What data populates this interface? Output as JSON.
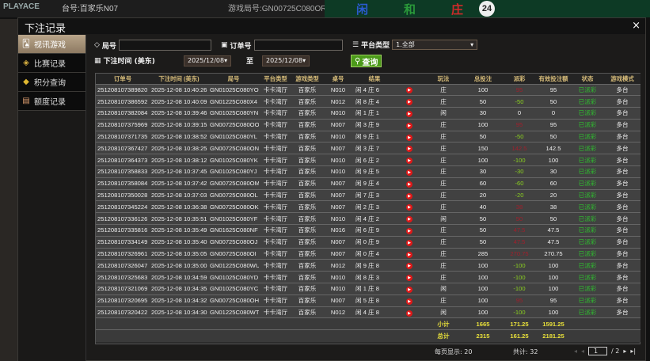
{
  "background": {
    "logo": "PLAYACE",
    "table_label": "台号:百家乐N07",
    "game_round": "游戏局号:GN00725C080OR",
    "road": [
      "闲",
      "和",
      "庄"
    ],
    "count": "24"
  },
  "modal": {
    "title": "下注记录",
    "close": "×"
  },
  "sidebar": {
    "items": [
      {
        "label": "视讯游戏",
        "icon": "cards-icon",
        "active": true
      },
      {
        "label": "比赛记录",
        "icon": "ticket-icon"
      },
      {
        "label": "积分查询",
        "icon": "diamond-icon"
      },
      {
        "label": "额度记录",
        "icon": "document-icon"
      }
    ]
  },
  "filters": {
    "round_label": "局号",
    "round_value": "",
    "order_label": "订单号",
    "order_value": "",
    "platform_label": "平台类型",
    "platform_value": "1.全部",
    "time_label": "下注时间 (美东)",
    "date_from": "2025/12/08",
    "to_label": "至",
    "date_to": "2025/12/08",
    "query_label": "查询"
  },
  "table": {
    "headers": [
      "订单号",
      "下注时间 (美东)",
      "局号",
      "平台类型",
      "游戏类型",
      "桌号",
      "结果",
      "",
      "玩法",
      "总投注",
      "派彩",
      "有效投注额",
      "状态",
      "游戏模式"
    ],
    "rows": [
      [
        "251208107389820",
        "2025-12-08 10:40:26",
        "GN01025C080YO",
        "卡卡湾厅",
        "百家乐",
        "N010",
        "闲 4 庄 6",
        "庄",
        "100",
        "95",
        "95",
        "已派彩",
        "多台"
      ],
      [
        "251208107386592",
        "2025-12-08 10:40:09",
        "GN01225C080X4",
        "卡卡湾厅",
        "百家乐",
        "N012",
        "闲 8 庄 4",
        "庄",
        "50",
        "-50",
        "50",
        "已派彩",
        "多台"
      ],
      [
        "251208107382084",
        "2025-12-08 10:39:46",
        "GN01025C080YN",
        "卡卡湾厅",
        "百家乐",
        "N010",
        "闲 1 庄 1",
        "闲",
        "30",
        "0",
        "0",
        "已派彩",
        "多台"
      ],
      [
        "251208107375969",
        "2025-12-08 10:39:15",
        "GN00725C080OO",
        "卡卡湾厅",
        "百家乐",
        "N007",
        "闲 3 庄 9",
        "庄",
        "100",
        "95",
        "95",
        "已派彩",
        "多台"
      ],
      [
        "251208107371735",
        "2025-12-08 10:38:52",
        "GN01025C080YL",
        "卡卡湾厅",
        "百家乐",
        "N010",
        "闲 9 庄 1",
        "庄",
        "50",
        "-50",
        "50",
        "已派彩",
        "多台"
      ],
      [
        "251208107367427",
        "2025-12-08 10:38:25",
        "GN00725C080ON",
        "卡卡湾厅",
        "百家乐",
        "N007",
        "闲 3 庄 7",
        "庄",
        "150",
        "142.5",
        "142.5",
        "已派彩",
        "多台"
      ],
      [
        "251208107364373",
        "2025-12-08 10:38:12",
        "GN01025C080YK",
        "卡卡湾厅",
        "百家乐",
        "N010",
        "闲 6 庄 2",
        "庄",
        "100",
        "-100",
        "100",
        "已派彩",
        "多台"
      ],
      [
        "251208107358833",
        "2025-12-08 10:37:45",
        "GN01025C080YJ",
        "卡卡湾厅",
        "百家乐",
        "N010",
        "闲 9 庄 5",
        "庄",
        "30",
        "-30",
        "30",
        "已派彩",
        "多台"
      ],
      [
        "251208107358084",
        "2025-12-08 10:37:42",
        "GN00725C080OM",
        "卡卡湾厅",
        "百家乐",
        "N007",
        "闲 9 庄 4",
        "庄",
        "60",
        "-60",
        "60",
        "已派彩",
        "多台"
      ],
      [
        "251208107350028",
        "2025-12-08 10:37:03",
        "GN00725C080OL",
        "卡卡湾厅",
        "百家乐",
        "N007",
        "闲 7 庄 3",
        "庄",
        "20",
        "-20",
        "20",
        "已派彩",
        "多台"
      ],
      [
        "251208107345224",
        "2025-12-08 10:36:38",
        "GN00725C080OK",
        "卡卡湾厅",
        "百家乐",
        "N007",
        "闲 2 庄 3",
        "庄",
        "40",
        "38",
        "38",
        "已派彩",
        "多台"
      ],
      [
        "251208107336126",
        "2025-12-08 10:35:51",
        "GN01025C080YF",
        "卡卡湾厅",
        "百家乐",
        "N010",
        "闲 4 庄 2",
        "闲",
        "50",
        "50",
        "50",
        "已派彩",
        "多台"
      ],
      [
        "251208107335816",
        "2025-12-08 10:35:49",
        "GN01625C080NF",
        "卡卡湾厅",
        "百家乐",
        "N016",
        "闲 6 庄 9",
        "庄",
        "50",
        "47.5",
        "47.5",
        "已派彩",
        "多台"
      ],
      [
        "251208107334149",
        "2025-12-08 10:35:40",
        "GN00725C080OJ",
        "卡卡湾厅",
        "百家乐",
        "N007",
        "闲 0 庄 9",
        "庄",
        "50",
        "47.5",
        "47.5",
        "已派彩",
        "多台"
      ],
      [
        "251208107326961",
        "2025-12-08 10:35:05",
        "GN00725C080OI",
        "卡卡湾厅",
        "百家乐",
        "N007",
        "闲 0 庄 4",
        "庄",
        "285",
        "270.75",
        "270.75",
        "已派彩",
        "多台"
      ],
      [
        "251208107326047",
        "2025-12-08 10:35:00",
        "GN01225C080WU",
        "卡卡湾厅",
        "百家乐",
        "N012",
        "闲 9 庄 8",
        "庄",
        "100",
        "-100",
        "100",
        "已派彩",
        "多台"
      ],
      [
        "251208107325683",
        "2025-12-08 10:34:59",
        "GN01025C080YD",
        "卡卡湾厅",
        "百家乐",
        "N010",
        "闲 8 庄 3",
        "庄",
        "100",
        "-100",
        "100",
        "已派彩",
        "多台"
      ],
      [
        "251208107321069",
        "2025-12-08 10:34:35",
        "GN01025C080YC",
        "卡卡湾厅",
        "百家乐",
        "N010",
        "闲 1 庄 8",
        "闲",
        "100",
        "-100",
        "100",
        "已派彩",
        "多台"
      ],
      [
        "251208107320695",
        "2025-12-08 10:34:32",
        "GN00725C080OH",
        "卡卡湾厅",
        "百家乐",
        "N007",
        "闲 5 庄 8",
        "庄",
        "100",
        "95",
        "95",
        "已派彩",
        "多台"
      ],
      [
        "251208107320422",
        "2025-12-08 10:34:30",
        "GN01225C080WT",
        "卡卡湾厅",
        "百家乐",
        "N012",
        "闲 4 庄 8",
        "闲",
        "100",
        "-100",
        "100",
        "已派彩",
        "多台"
      ]
    ],
    "subtotal": {
      "label": "小计",
      "bet": "1665",
      "payout": "171.25",
      "valid": "1591.25"
    },
    "total": {
      "label": "总计",
      "bet": "2315",
      "payout": "161.25",
      "valid": "2181.25"
    }
  },
  "footer": {
    "per_page": "每页显示: 20",
    "count": "共计: 32",
    "page": "1",
    "pages": "/  2"
  },
  "colors": {
    "win": "#a0202c",
    "loss": "#8ad020",
    "status": "#2fc02f",
    "sum": "#e8e03a",
    "header": "#d8bd7a"
  }
}
